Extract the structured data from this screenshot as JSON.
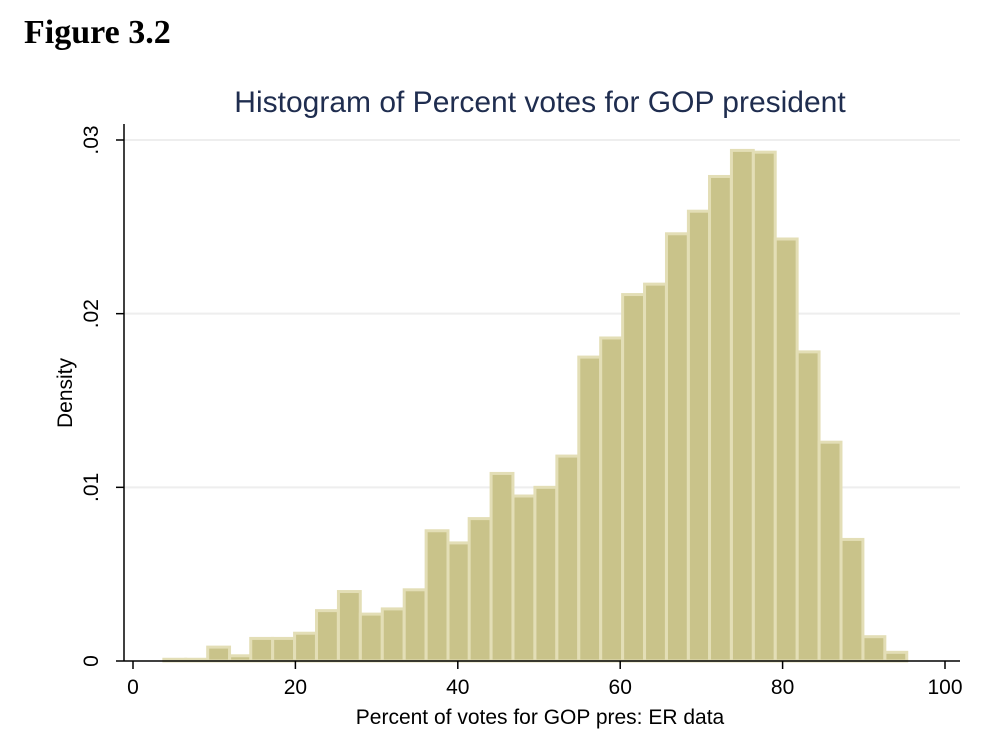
{
  "figure_label": "Figure 3.2",
  "colors": {
    "bar_fill": "#c9c38a",
    "bar_stroke": "#e3deb6",
    "title": "#1f2d4f",
    "grid": "#eeeeee"
  },
  "chart_data": {
    "type": "bar",
    "title": "Histogram of Percent votes for GOP president",
    "xlabel": "Percent of votes for GOP pres: ER data",
    "ylabel": "Density",
    "xlim": [
      0,
      100
    ],
    "ylim": [
      0,
      0.03
    ],
    "bin_width": 2.69,
    "x_ticks": [
      {
        "value": 0,
        "label": "0"
      },
      {
        "value": 20,
        "label": "20"
      },
      {
        "value": 40,
        "label": "40"
      },
      {
        "value": 60,
        "label": "60"
      },
      {
        "value": 80,
        "label": "80"
      },
      {
        "value": 100,
        "label": "100"
      }
    ],
    "y_ticks": [
      {
        "value": 0,
        "label": "0"
      },
      {
        "value": 0.01,
        "label": ".01"
      },
      {
        "value": 0.02,
        "label": ".02"
      },
      {
        "value": 0.03,
        "label": ".03"
      }
    ],
    "grid": true,
    "bins": [
      {
        "x0": 3.8,
        "value": 0.0001
      },
      {
        "x0": 6.5,
        "value": 0.0001
      },
      {
        "x0": 9.2,
        "value": 0.0008
      },
      {
        "x0": 11.9,
        "value": 0.0003
      },
      {
        "x0": 14.5,
        "value": 0.0013
      },
      {
        "x0": 17.2,
        "value": 0.0013
      },
      {
        "x0": 19.9,
        "value": 0.0016
      },
      {
        "x0": 22.6,
        "value": 0.0029
      },
      {
        "x0": 25.3,
        "value": 0.004
      },
      {
        "x0": 28.0,
        "value": 0.0027
      },
      {
        "x0": 30.7,
        "value": 0.003
      },
      {
        "x0": 33.4,
        "value": 0.0041
      },
      {
        "x0": 36.1,
        "value": 0.0075
      },
      {
        "x0": 38.8,
        "value": 0.0068
      },
      {
        "x0": 41.4,
        "value": 0.0082
      },
      {
        "x0": 44.1,
        "value": 0.0108
      },
      {
        "x0": 46.8,
        "value": 0.0095
      },
      {
        "x0": 49.5,
        "value": 0.01
      },
      {
        "x0": 52.2,
        "value": 0.0118
      },
      {
        "x0": 54.9,
        "value": 0.0175
      },
      {
        "x0": 57.6,
        "value": 0.0186
      },
      {
        "x0": 60.3,
        "value": 0.0211
      },
      {
        "x0": 63.0,
        "value": 0.0217
      },
      {
        "x0": 65.7,
        "value": 0.0246
      },
      {
        "x0": 68.4,
        "value": 0.0259
      },
      {
        "x0": 71.0,
        "value": 0.0279
      },
      {
        "x0": 73.7,
        "value": 0.0294
      },
      {
        "x0": 76.4,
        "value": 0.0293
      },
      {
        "x0": 79.1,
        "value": 0.0243
      },
      {
        "x0": 81.8,
        "value": 0.0178
      },
      {
        "x0": 84.5,
        "value": 0.0126
      },
      {
        "x0": 87.2,
        "value": 0.007
      },
      {
        "x0": 89.9,
        "value": 0.0014
      },
      {
        "x0": 92.6,
        "value": 0.0005
      }
    ]
  }
}
